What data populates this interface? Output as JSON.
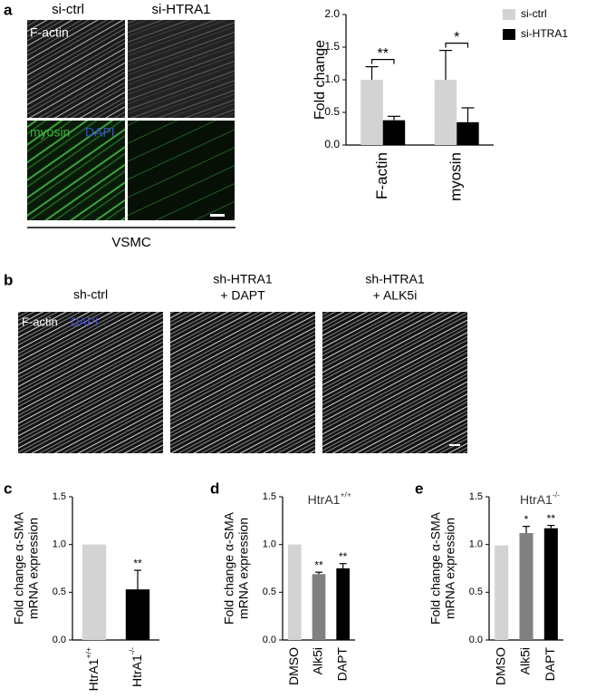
{
  "panel_labels": [
    "a",
    "b",
    "c",
    "d",
    "e"
  ],
  "panel_a_images": {
    "columns": [
      "si-ctrl",
      "si-HTRA1"
    ],
    "stains": [
      "F-actin",
      "myosin",
      "DAPI"
    ],
    "footer": "VSMC"
  },
  "panel_b_images": {
    "columns": [
      [
        "sh-ctrl"
      ],
      [
        "sh-HTRA1",
        "+ DAPT"
      ],
      [
        "sh-HTRA1",
        "+ ALK5i"
      ]
    ],
    "stains": [
      "F-actin",
      "DAPI"
    ]
  },
  "chart_data": [
    {
      "type": "grouped-bar",
      "ylabel": [
        "Fold change"
      ],
      "categories": [
        "F-actin",
        "myosin"
      ],
      "series": [
        {
          "name": "si-ctrl",
          "color": "#d3d3d3",
          "values": [
            1.0,
            1.0
          ],
          "errors": [
            0.2,
            0.45
          ]
        },
        {
          "name": "si-HTRA1",
          "color": "#000000",
          "values": [
            0.38,
            0.35
          ],
          "errors": [
            0.06,
            0.22
          ]
        }
      ],
      "significance": [
        "**",
        "*"
      ],
      "ylim": [
        0,
        2
      ],
      "yticks": [
        {
          "value": 0,
          "label": "0.0"
        },
        0.5,
        {
          "value": 1,
          "label": "1.0"
        },
        1.5,
        {
          "value": 2,
          "label": "2.0"
        }
      ],
      "legend": "right"
    },
    {
      "type": "bar",
      "ylabel": [
        "Fold change α-SMA",
        "mRNA expression"
      ],
      "categories": [
        "HtrA1+/+",
        "HtrA1-/-"
      ],
      "values": [
        1.0,
        0.53
      ],
      "errors": [
        0,
        0.2
      ],
      "colors": [
        "#d3d3d3",
        "#000000"
      ],
      "significance": [
        null,
        "**"
      ],
      "ylim": [
        0,
        1.5
      ],
      "yticks": [
        {
          "value": 0,
          "label": "0.0"
        },
        0.5,
        {
          "value": 1,
          "label": "1.0"
        },
        1.5
      ]
    },
    {
      "type": "bar",
      "title": "HtrA1+/+",
      "ylabel": [
        "Fold change α-SMA",
        "mRNA expression"
      ],
      "categories": [
        "DMSO",
        "Alk5i",
        "DAPT"
      ],
      "values": [
        1.0,
        0.69,
        0.75
      ],
      "errors": [
        0,
        0.02,
        0.05
      ],
      "colors": [
        "#d3d3d3",
        "#808080",
        "#000000"
      ],
      "significance": [
        null,
        "**",
        "**"
      ],
      "ylim": [
        0,
        1.5
      ],
      "yticks": [
        {
          "value": 0,
          "label": "0.0"
        },
        0.5,
        {
          "value": 1,
          "label": "1.0"
        },
        1.5
      ]
    },
    {
      "type": "bar",
      "title": "HtrA1-/-",
      "ylabel": [
        "Fold change α-SMA",
        "mRNA expression"
      ],
      "categories": [
        "DMSO",
        "Alk5i",
        "DAPT"
      ],
      "values": [
        0.99,
        1.12,
        1.17
      ],
      "errors": [
        0,
        0.07,
        0.03
      ],
      "colors": [
        "#d3d3d3",
        "#808080",
        "#000000"
      ],
      "significance": [
        null,
        "*",
        "**"
      ],
      "ylim": [
        0,
        1.5
      ],
      "yticks": [
        {
          "value": 0,
          "label": "0.0"
        },
        0.5,
        {
          "value": 1,
          "label": "1.0"
        },
        1.5
      ]
    }
  ]
}
